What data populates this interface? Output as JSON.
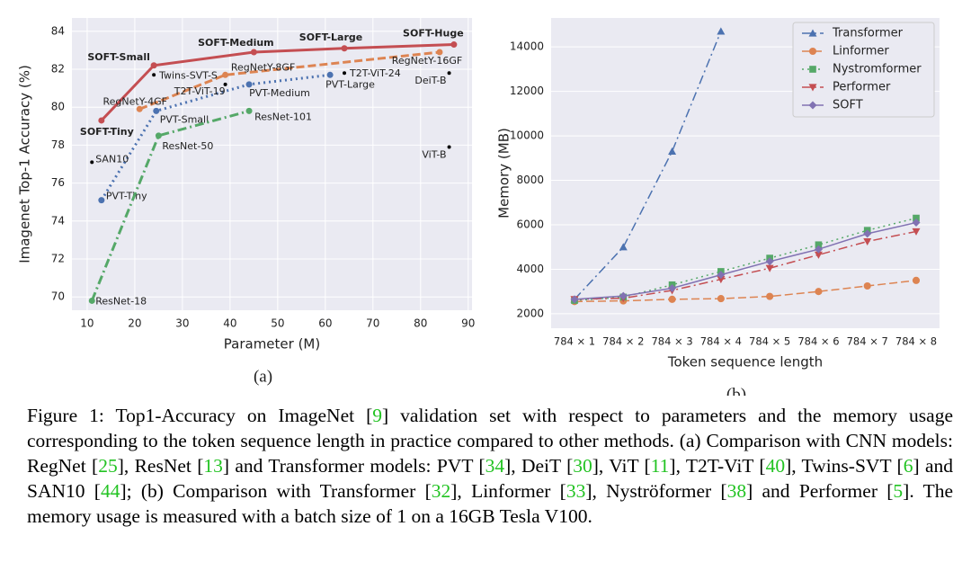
{
  "chart_data": [
    {
      "type": "line_scatter",
      "xlabel": "Parameter (M)",
      "ylabel": "Imagenet Top-1 Accuracy (%)",
      "subcaption": "(a)",
      "xlim": [
        6.8,
        90.8
      ],
      "ylim": [
        69.3,
        84.7
      ],
      "xticks": [
        10,
        20,
        30,
        40,
        50,
        60,
        70,
        80,
        90
      ],
      "yticks": [
        70,
        72,
        74,
        76,
        78,
        80,
        82,
        84
      ],
      "grid": true,
      "series": [
        {
          "color": "#c44e52",
          "linestyle": "solid",
          "label_weight": "bold",
          "x": [
            13,
            24,
            45,
            64,
            87
          ],
          "y": [
            79.3,
            82.2,
            82.9,
            83.1,
            83.3
          ],
          "labels": [
            "SOFT-Tiny",
            "SOFT-Small",
            "SOFT-Medium",
            "SOFT-Large",
            "SOFT-Huge"
          ]
        },
        {
          "color": "#dd8452",
          "linestyle": "dashed",
          "x": [
            21,
            39,
            84
          ],
          "y": [
            79.9,
            81.7,
            82.9
          ],
          "labels": [
            "RegNetY-4GF",
            "RegNetY-8GF",
            "RegNetY-16GF"
          ]
        },
        {
          "color": "#4c72b0",
          "linestyle": "dotted",
          "x": [
            13,
            24.5,
            44,
            61
          ],
          "y": [
            75.1,
            79.8,
            81.2,
            81.7
          ],
          "labels": [
            "PVT-Tiny",
            "PVT-Small",
            "PVT-Medium",
            "PVT-Large"
          ]
        },
        {
          "color": "#55a868",
          "linestyle": "dashdot",
          "x": [
            11,
            25,
            44
          ],
          "y": [
            69.8,
            78.5,
            79.8
          ],
          "labels": [
            "ResNet-18",
            "ResNet-50",
            "ResNet-101"
          ]
        },
        {
          "color": "#000000",
          "linestyle": "none",
          "x": [
            11,
            24,
            39,
            64,
            86,
            86
          ],
          "y": [
            77.1,
            81.7,
            81.2,
            81.8,
            81.8,
            77.9
          ],
          "labels": [
            "SAN10",
            "Twins-SVT-S",
            "T2T-ViT-19",
            "T2T-ViT-24",
            "DeiT-B",
            "ViT-B"
          ]
        }
      ]
    },
    {
      "type": "line",
      "xlabel": "Token sequence length",
      "ylabel": "Memory (MB)",
      "subcaption": "(b)",
      "categories": [
        "784 × 1",
        "784 × 2",
        "784 × 3",
        "784 × 4",
        "784 × 5",
        "784 × 6",
        "784 × 7",
        "784 × 8"
      ],
      "ylim": [
        1350,
        15300
      ],
      "yticks": [
        2000,
        4000,
        6000,
        8000,
        10000,
        12000,
        14000
      ],
      "grid": true,
      "legend": "upper right",
      "series": [
        {
          "name": "Transformer",
          "color": "#4c72b0",
          "linestyle": "dashdot",
          "marker": "triangle-up",
          "values": [
            2650,
            5000,
            9300,
            14700,
            null,
            null,
            null,
            null
          ]
        },
        {
          "name": "Linformer",
          "color": "#dd8452",
          "linestyle": "dashed",
          "marker": "circle",
          "values": [
            2550,
            2580,
            2650,
            2680,
            2780,
            3000,
            3250,
            3500
          ]
        },
        {
          "name": "Nystromformer",
          "color": "#55a868",
          "linestyle": "dotted",
          "marker": "square",
          "values": [
            2600,
            2750,
            3300,
            3900,
            4500,
            5100,
            5750,
            6300
          ]
        },
        {
          "name": "Performer",
          "color": "#c44e52",
          "linestyle": "dashdot",
          "marker": "triangle-down",
          "values": [
            2650,
            2700,
            3050,
            3550,
            4050,
            4650,
            5250,
            5700
          ]
        },
        {
          "name": "SOFT",
          "color": "#8172b2",
          "linestyle": "solid",
          "marker": "diamond",
          "values": [
            2650,
            2800,
            3150,
            3750,
            4350,
            4900,
            5600,
            6100
          ]
        }
      ]
    }
  ],
  "caption": [
    "Figure 1: Top1-Accuracy on ImageNet [",
    "9",
    "] validation set with respect to parameters and the memory usage corresponding to the token sequence length in practice compared to other methods. (a) Comparison with CNN models: RegNet [",
    "25",
    "], ResNet [",
    "13",
    "] and Transformer models: PVT [",
    "34",
    "], DeiT [",
    "30",
    "], ViT [",
    "11",
    "], T2T-ViT [",
    "40",
    "], Twins-SVT [",
    "6",
    "] and SAN10 [",
    "44",
    "]; (b) Comparison with Transformer [",
    "32",
    "], Linformer [",
    "33",
    "], Nyströformer [",
    "38",
    "] and Performer [",
    "5",
    "]. The memory usage is measured with a batch size of 1 on a 16GB Tesla V100."
  ]
}
